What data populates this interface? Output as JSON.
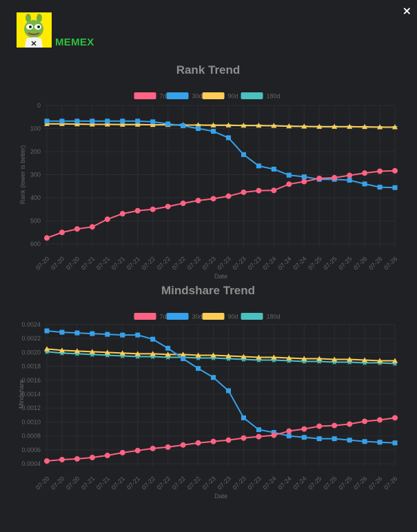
{
  "header": {
    "brand": "MEMEX",
    "close_glyph": "×",
    "logo_icon": "pepe-frog-logo-icon",
    "close_icon": "close-icon"
  },
  "colors": {
    "7d": "#ff6384",
    "30d": "#36a2eb",
    "90d": "#ffcd56",
    "180d": "#4bc0c0",
    "title": "#8e8e8e",
    "tick": "#666666",
    "grid": "#2c2d31"
  },
  "chart_data": [
    {
      "type": "line",
      "title": "Rank Trend",
      "xlabel": "Date",
      "ylabel": "Rank (lower is better)",
      "reversed_y": true,
      "ylim": [
        0,
        600
      ],
      "yticks": [
        0,
        100,
        200,
        300,
        400,
        500,
        600
      ],
      "ytick_labels": [
        "0",
        "100",
        "200",
        "300",
        "400",
        "500",
        "600"
      ],
      "categories": [
        "07-20",
        "07-20",
        "07-20",
        "07-21",
        "07-21",
        "07-21",
        "07-21",
        "07-22",
        "07-22",
        "07-22",
        "07-22",
        "07-23",
        "07-23",
        "07-23",
        "07-23",
        "07-24",
        "07-24",
        "07-24",
        "07-25",
        "07-25",
        "07-25",
        "07-26",
        "07-26",
        "07-26"
      ],
      "legend": [
        "7d",
        "30d",
        "90d",
        "180d"
      ],
      "series": [
        {
          "name": "7d",
          "marker": "circle",
          "values": [
            574,
            550,
            535,
            526,
            493,
            469,
            456,
            450,
            438,
            424,
            412,
            404,
            393,
            376,
            369,
            368,
            341,
            330,
            316,
            313,
            303,
            293,
            285,
            283
          ]
        },
        {
          "name": "30d",
          "marker": "square",
          "values": [
            68,
            68,
            68,
            68,
            68,
            68,
            68,
            71,
            80,
            88,
            100,
            112,
            140,
            213,
            262,
            276,
            302,
            309,
            320,
            320,
            324,
            340,
            354,
            356
          ]
        },
        {
          "name": "90d",
          "marker": "triangle",
          "values": [
            80,
            80,
            81,
            82,
            82,
            83,
            83,
            84,
            84,
            85,
            85,
            86,
            86,
            87,
            87,
            88,
            90,
            91,
            92,
            92,
            92,
            93,
            94,
            94
          ]
        },
        {
          "name": "180d",
          "marker": "star",
          "values": [
            80,
            80,
            81,
            82,
            82,
            83,
            83,
            84,
            84,
            85,
            85,
            86,
            86,
            87,
            87,
            88,
            90,
            91,
            92,
            92,
            92,
            93,
            94,
            94
          ]
        }
      ]
    },
    {
      "type": "line",
      "title": "Mindshare Trend",
      "xlabel": "Date",
      "ylabel": "Mindshare",
      "reversed_y": false,
      "ylim": [
        0.0004,
        0.0024
      ],
      "yticks": [
        0.0004,
        0.0006,
        0.0008,
        0.001,
        0.0012,
        0.0014,
        0.0016,
        0.0018,
        0.002,
        0.0022,
        0.0024
      ],
      "ytick_labels": [
        "0.0004",
        "0.0006",
        "0.0008",
        "0.0010",
        "0.0012",
        "0.0014",
        "0.0016",
        "0.0018",
        "0.0020",
        "0.0022",
        "0.0024"
      ],
      "categories": [
        "07-20",
        "07-20",
        "07-20",
        "07-21",
        "07-21",
        "07-21",
        "07-21",
        "07-22",
        "07-22",
        "07-22",
        "07-22",
        "07-23",
        "07-23",
        "07-23",
        "07-23",
        "07-24",
        "07-24",
        "07-24",
        "07-25",
        "07-25",
        "07-25",
        "07-26",
        "07-26",
        "07-26"
      ],
      "legend": [
        "7d",
        "30d",
        "90d",
        "180d"
      ],
      "series": [
        {
          "name": "7d",
          "marker": "circle",
          "values": [
            0.00044,
            0.00046,
            0.00047,
            0.00049,
            0.00052,
            0.00056,
            0.00059,
            0.00062,
            0.00064,
            0.00067,
            0.0007,
            0.00072,
            0.00074,
            0.00077,
            0.00079,
            0.00081,
            0.00087,
            0.0009,
            0.00094,
            0.00095,
            0.00097,
            0.00101,
            0.00103,
            0.00106
          ]
        },
        {
          "name": "30d",
          "marker": "square",
          "values": [
            0.00231,
            0.00229,
            0.00228,
            0.00227,
            0.00226,
            0.00225,
            0.00225,
            0.00219,
            0.00206,
            0.00191,
            0.00177,
            0.00164,
            0.00145,
            0.00106,
            0.00089,
            0.00085,
            0.0008,
            0.00078,
            0.00076,
            0.00076,
            0.00074,
            0.00072,
            0.00071,
            0.0007
          ]
        },
        {
          "name": "90d",
          "marker": "triangle",
          "values": [
            0.00205,
            0.00203,
            0.00202,
            0.00201,
            0.002,
            0.00199,
            0.00198,
            0.00198,
            0.00197,
            0.00197,
            0.00196,
            0.00196,
            0.00195,
            0.00194,
            0.00193,
            0.00193,
            0.00192,
            0.00191,
            0.00191,
            0.0019,
            0.0019,
            0.00189,
            0.00188,
            0.00188
          ]
        },
        {
          "name": "180d",
          "marker": "star",
          "values": [
            0.00201,
            0.00199,
            0.00198,
            0.00197,
            0.00196,
            0.00195,
            0.00194,
            0.00194,
            0.00193,
            0.00193,
            0.00192,
            0.00192,
            0.00191,
            0.0019,
            0.00189,
            0.00189,
            0.00188,
            0.00187,
            0.00187,
            0.00186,
            0.00186,
            0.00185,
            0.00185,
            0.00184
          ]
        }
      ]
    }
  ]
}
